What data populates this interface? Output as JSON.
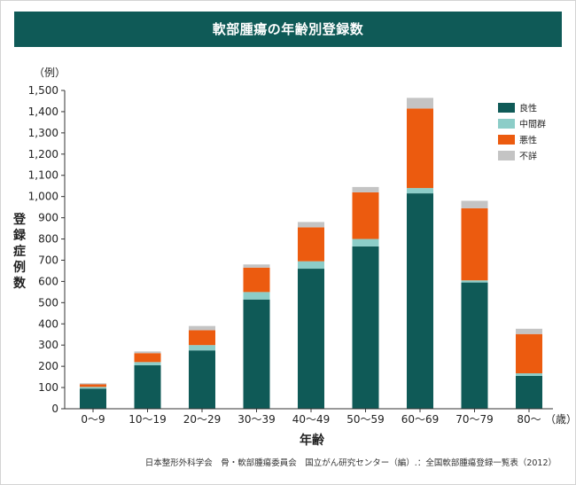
{
  "chart_data": {
    "type": "bar",
    "stacked": true,
    "title": "軟部腫瘍の年齢別登録数",
    "ylabel": "登録症例数",
    "yunit": "（例）",
    "xlabel": "年齢",
    "xunit": "（歳）",
    "ylim": [
      0,
      1500
    ],
    "yticks": [
      "0",
      "100",
      "200",
      "300",
      "400",
      "500",
      "600",
      "700",
      "800",
      "900",
      "1,000",
      "1,100",
      "1,200",
      "1,300",
      "1,400",
      "1,500"
    ],
    "categories": [
      "0～9",
      "10～19",
      "20～29",
      "30～39",
      "40～49",
      "50～59",
      "60～69",
      "70～79",
      "80～"
    ],
    "series": [
      {
        "name": "良性",
        "color": "#0f5a57",
        "values": [
          95,
          205,
          275,
          515,
          660,
          765,
          1015,
          595,
          155
        ]
      },
      {
        "name": "中間群",
        "color": "#8ccdc8",
        "values": [
          8,
          15,
          25,
          35,
          35,
          35,
          25,
          10,
          12
        ]
      },
      {
        "name": "悪性",
        "color": "#ec5b0f",
        "values": [
          12,
          42,
          70,
          115,
          160,
          220,
          375,
          340,
          185
        ]
      },
      {
        "name": "不詳",
        "color": "#c4c4c4",
        "values": [
          5,
          8,
          20,
          15,
          25,
          25,
          50,
          35,
          25
        ]
      }
    ],
    "legend_position": "top-right",
    "grid": false
  },
  "source": "日本整形外科学会　骨・軟部腫瘍委員会　国立がん研究センター（編）.：全国軟部腫瘍登録一覧表（2012）"
}
